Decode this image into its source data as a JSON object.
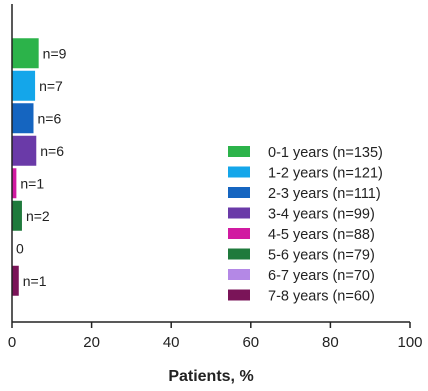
{
  "chart_data": {
    "type": "bar",
    "orientation": "horizontal",
    "title": "",
    "xlabel": "Patients, %",
    "ylabel": "",
    "xlim": [
      0,
      100
    ],
    "xticks": [
      0,
      20,
      40,
      60,
      80,
      100
    ],
    "grid": false,
    "legend": "bottom-right",
    "series": [
      {
        "name": "0-1 years (n=135)",
        "value": 6.7,
        "label": "n=9",
        "color": "#2cb34a"
      },
      {
        "name": "1-2 years (n=121)",
        "value": 5.8,
        "label": "n=7",
        "color": "#14a6ea"
      },
      {
        "name": "2-3 years (n=111)",
        "value": 5.4,
        "label": "n=6",
        "color": "#1565c0"
      },
      {
        "name": "3-4 years (n=99)",
        "value": 6.1,
        "label": "n=6",
        "color": "#6a3aa8"
      },
      {
        "name": "4-5 years (n=88)",
        "value": 1.1,
        "label": "n=1",
        "color": "#d11aa1"
      },
      {
        "name": "5-6 years (n=79)",
        "value": 2.5,
        "label": "n=2",
        "color": "#1f7a3c"
      },
      {
        "name": "6-7 years (n=70)",
        "value": 0,
        "label": "0",
        "color": "#b488e6"
      },
      {
        "name": "7-8 years (n=60)",
        "value": 1.7,
        "label": "n=1",
        "color": "#7a1458"
      }
    ]
  }
}
